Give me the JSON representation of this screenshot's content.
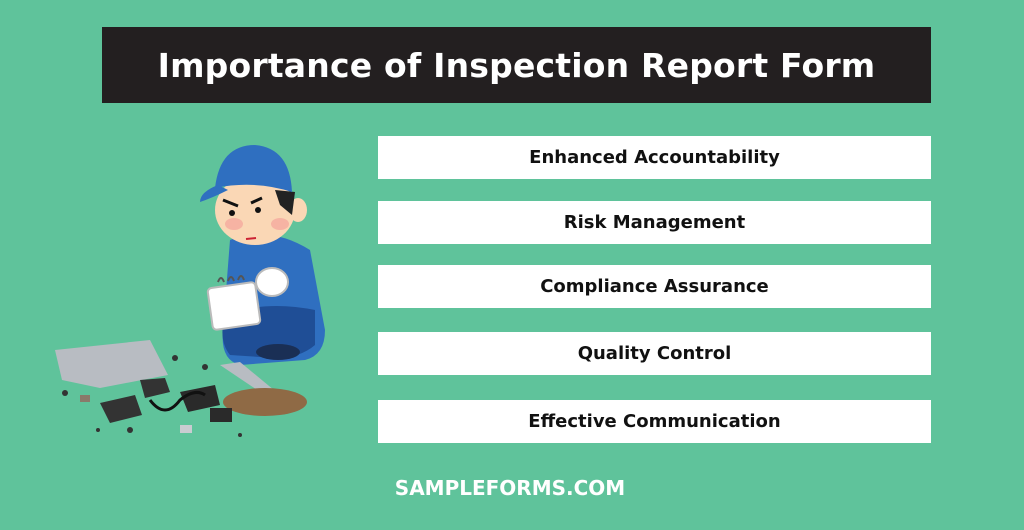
{
  "title": "Importance of Inspection Report Form",
  "items": [
    {
      "label": "Enhanced Accountability"
    },
    {
      "label": "Risk Management"
    },
    {
      "label": "Compliance Assurance"
    },
    {
      "label": "Quality Control"
    },
    {
      "label": "Effective Communication"
    }
  ],
  "footer": "SAMPLEFORMS.COM",
  "illustration": "inspector-with-notepad-examining-debris",
  "colors": {
    "background": "#5fc39b",
    "title_bar": "#231f20",
    "item_bg": "#ffffff",
    "uniform": "#2f6fc0"
  }
}
